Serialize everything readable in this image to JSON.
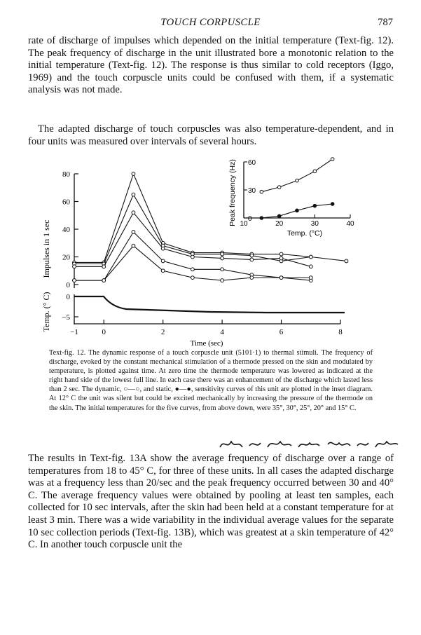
{
  "header": {
    "title": "TOUCH CORPUSCLE",
    "page_number": "787"
  },
  "paragraph_1": "rate of discharge of impulses which depended on the initial temperature (Text-fig. 12). The peak frequency of discharge in the unit illustrated bore a monotonic relation to the initial temperature (Text-fig. 12). The response is thus similar to cold receptors (Iggo, 1969) and the touch corpuscle units could be confused with them, if a systematic analysis was not made.",
  "paragraph_2": "The adapted discharge of touch corpuscles was also temperature-dependent, and in four units was measured over intervals of several hours.",
  "caption": "Text-fig. 12. The dynamic response of a touch corpuscle unit (5101·1) to thermal stimuli. The frequency of discharge, evoked by the constant mechanical stimulation of a thermode pressed on the skin and modulated by temperature, is plotted against time. At zero time the thermode temperature was lowered as indicated at the right hand side of the lowest full line. In each case there was an enhancement of the discharge which lasted less than 2 sec. The dynamic, ○—○, and static, ●—●, sensitivity curves of this unit are plotted in the inset diagram. At 12° C the unit was silent but could be excited mechanically by increasing the pressure of the thermode on the skin. The initial temperatures for the five curves, from above down, were 35°, 30°, 25°, 20° and 15° C.",
  "paragraph_3": "The results in Text-fig. 13A show the average frequency of discharge over a range of temperatures from 18 to 45° C, for three of these units. In all cases the adapted discharge was at a frequency less than 20/sec and the peak frequency occurred between 30 and 40° C. The average frequency values were obtained by pooling at least ten samples, each collected for 10 sec intervals, after the skin had been held at a constant temperature for at least 3 min. There was a wide variability in the individual average values for the separate 10 sec collection periods (Text-fig. 13B), which was greatest at a skin temperature of 42° C. In another touch corpuscle unit the",
  "figure": {
    "main": {
      "y_label": "Impulses in 1 sec",
      "y_ticks": [
        "80",
        "60",
        "40",
        "20",
        "0"
      ],
      "temp_label": "Temp. (° C)",
      "temp_ticks": [
        "0",
        "−5"
      ],
      "x_label": "Time (sec)",
      "x_ticks": [
        "−1",
        "0",
        "2",
        "4",
        "6",
        "8"
      ]
    },
    "inset": {
      "y_label": "Peak frequency (Hz)",
      "y_ticks": [
        "60",
        "30",
        "0"
      ],
      "x_label": "Temp. (°C)",
      "x_ticks": [
        "10",
        "20",
        "30",
        "40"
      ]
    }
  },
  "chart_data": [
    {
      "type": "line",
      "xlabel": "Time (sec)",
      "ylabel": "Impulses in 1 sec",
      "xlim": [
        -1,
        8
      ],
      "ylim": [
        0,
        80
      ],
      "series": [
        {
          "x": [
            -1,
            0,
            1,
            2,
            3,
            4,
            5,
            6,
            7,
            8.2
          ],
          "values": [
            16,
            16,
            80,
            30,
            23,
            23,
            22,
            22,
            20,
            17
          ]
        },
        {
          "x": [
            -1,
            0,
            1,
            2,
            3,
            4,
            5,
            6,
            7
          ],
          "values": [
            15,
            15,
            65,
            28,
            22,
            22,
            21,
            17,
            20
          ]
        },
        {
          "x": [
            -1,
            0,
            1,
            2,
            3,
            4,
            5,
            6,
            7
          ],
          "values": [
            13,
            13,
            52,
            26,
            20,
            19,
            18,
            19,
            13
          ]
        },
        {
          "x": [
            -1,
            0,
            1,
            2,
            3,
            4,
            5,
            6,
            7
          ],
          "values": [
            3,
            3,
            38,
            17,
            11,
            11,
            7,
            5,
            3
          ]
        },
        {
          "x": [
            -1,
            0,
            1,
            2,
            3,
            4,
            5,
            6,
            7
          ],
          "values": [
            3,
            3,
            28,
            10,
            5,
            3,
            5,
            5,
            5
          ]
        }
      ]
    },
    {
      "type": "line",
      "xlabel": "Temp. (°C)",
      "ylabel": "Peak frequency (Hz)",
      "xlim": [
        10,
        40
      ],
      "ylim": [
        0,
        60
      ],
      "series": [
        {
          "x": [
            15,
            20,
            25,
            30,
            35
          ],
          "values": [
            28,
            33,
            40,
            50,
            63
          ]
        },
        {
          "x": [
            15,
            20,
            25,
            30,
            35
          ],
          "values": [
            0,
            2,
            8,
            13,
            15
          ]
        }
      ]
    }
  ]
}
